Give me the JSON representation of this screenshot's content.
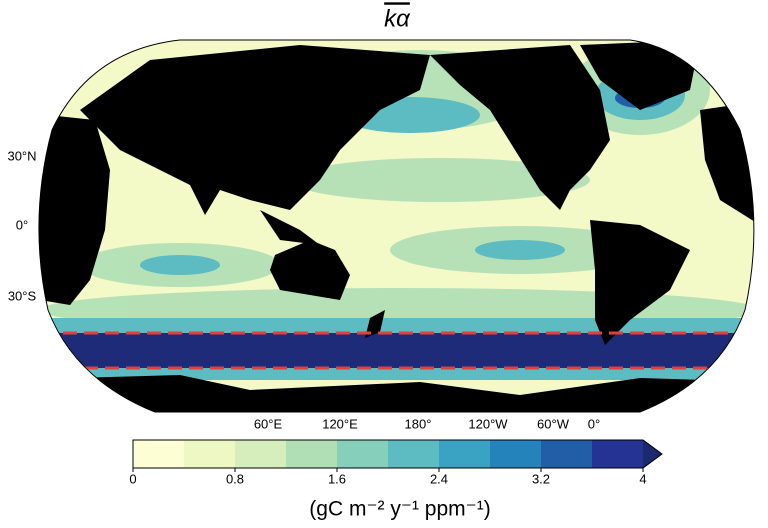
{
  "title": "kα",
  "latitude_labels": [
    "30°N",
    "0°",
    "30°S"
  ],
  "longitude_labels": [
    "60°E",
    "120°E",
    "180°",
    "120°W",
    "60°W",
    "0°"
  ],
  "colorbar": {
    "clim": [
      0,
      4
    ],
    "levels": [
      0,
      0.4,
      0.8,
      1.2,
      1.6,
      2.0,
      2.4,
      2.8,
      3.2,
      3.6,
      4
    ],
    "colors": [
      "#fdfed4",
      "#eef8c2",
      "#d5eebb",
      "#b0dfb6",
      "#86cfbb",
      "#5dbcc2",
      "#3aa3c3",
      "#2483ba",
      "#225ea8",
      "#253494"
    ],
    "extend_color": "#1b2a6f",
    "ticks": [
      0,
      0.8,
      1.6,
      2.4,
      3.2,
      4
    ],
    "label": "(gC m⁻² y⁻¹ ppm⁻¹)"
  }
}
